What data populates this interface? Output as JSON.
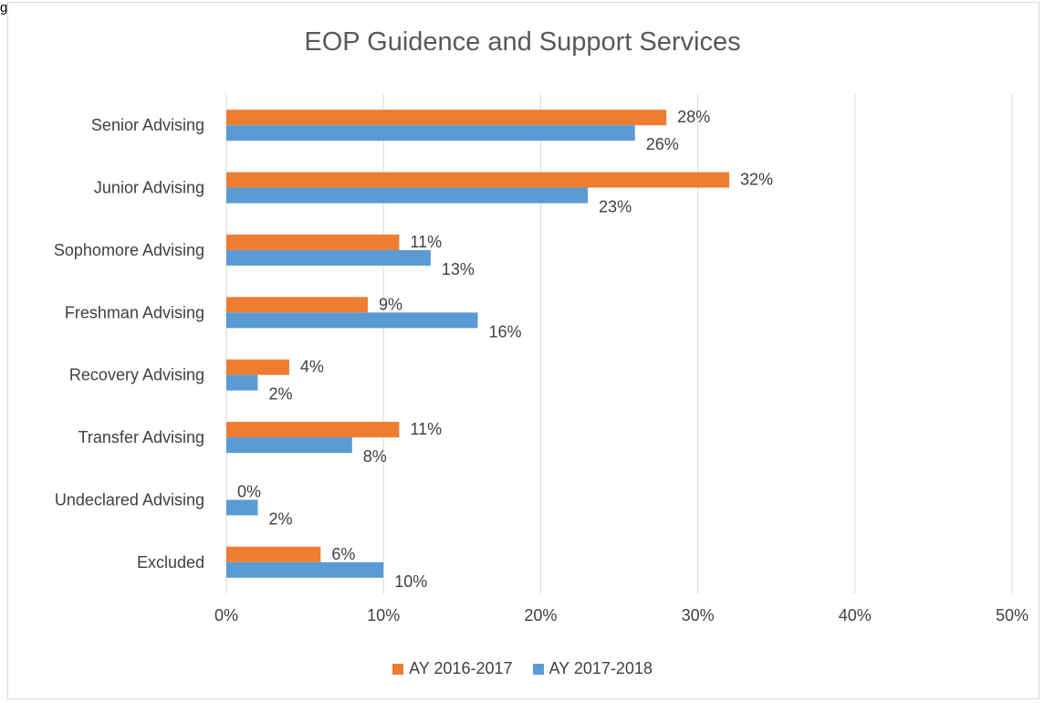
{
  "corner_text": "g",
  "chart_data": {
    "type": "bar",
    "orientation": "horizontal",
    "title": "EOP Guidence and Support Services",
    "categories": [
      "Senior Advising",
      "Junior Advising",
      "Sophomore Advising",
      "Freshman Advising",
      "Recovery Advising",
      "Transfer Advising",
      "Undeclared Advising",
      "Excluded"
    ],
    "series": [
      {
        "name": "AY 2016-2017",
        "color": "#ed7d31",
        "values": [
          28,
          32,
          11,
          9,
          4,
          11,
          0,
          6
        ],
        "labels": [
          "28%",
          "32%",
          "11%",
          "9%",
          "4%",
          "11%",
          "0%",
          "6%"
        ]
      },
      {
        "name": "AY 2017-2018",
        "color": "#5b9bd5",
        "values": [
          26,
          23,
          13,
          16,
          2,
          8,
          2,
          10
        ],
        "labels": [
          "26%",
          "23%",
          "13%",
          "16%",
          "2%",
          "8%",
          "2%",
          "10%"
        ]
      }
    ],
    "xlim": [
      0,
      50
    ],
    "xticks": [
      "0%",
      "10%",
      "20%",
      "30%",
      "40%",
      "50%"
    ],
    "grid": true,
    "legend_position": "bottom"
  }
}
